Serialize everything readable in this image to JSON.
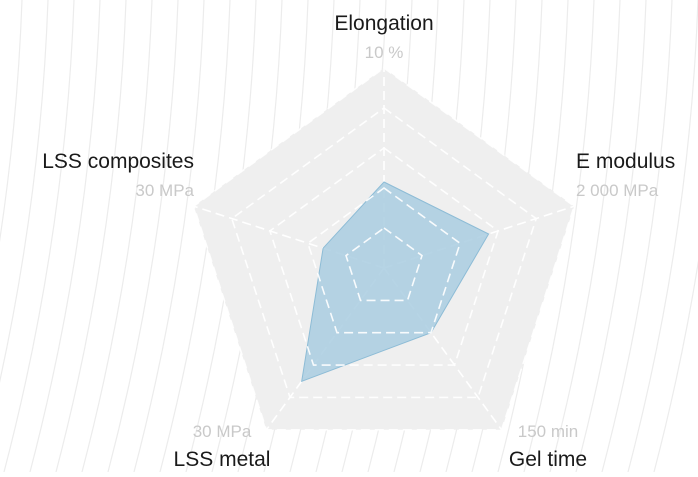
{
  "colors": {
    "background_lines": "#ececec",
    "web_fill": "#efefef",
    "grid_lines": "#ffffff",
    "series_fill": "#a9cde0",
    "series_stroke": "#8dbcd6",
    "axis_name": "#1a1a1a",
    "axis_max": "#c9c9c9"
  },
  "chart_data": {
    "type": "radar",
    "levels": 5,
    "axes": [
      {
        "name": "Elongation",
        "max_label": "10 %",
        "max": 10,
        "unit": "%"
      },
      {
        "name": "E modulus",
        "max_label": "2 000 MPa",
        "max": 2000,
        "unit": "MPa"
      },
      {
        "name": "Gel time",
        "max_label": "150 min",
        "max": 150,
        "unit": "min"
      },
      {
        "name": "LSS metal",
        "max_label": "30 MPa",
        "max": 30,
        "unit": "MPa"
      },
      {
        "name": "LSS composites",
        "max_label": "30 MPa",
        "max": 30,
        "unit": "MPa"
      }
    ],
    "series": [
      {
        "values": [
          4.3,
          1100,
          60,
          21,
          9.6
        ]
      }
    ]
  }
}
